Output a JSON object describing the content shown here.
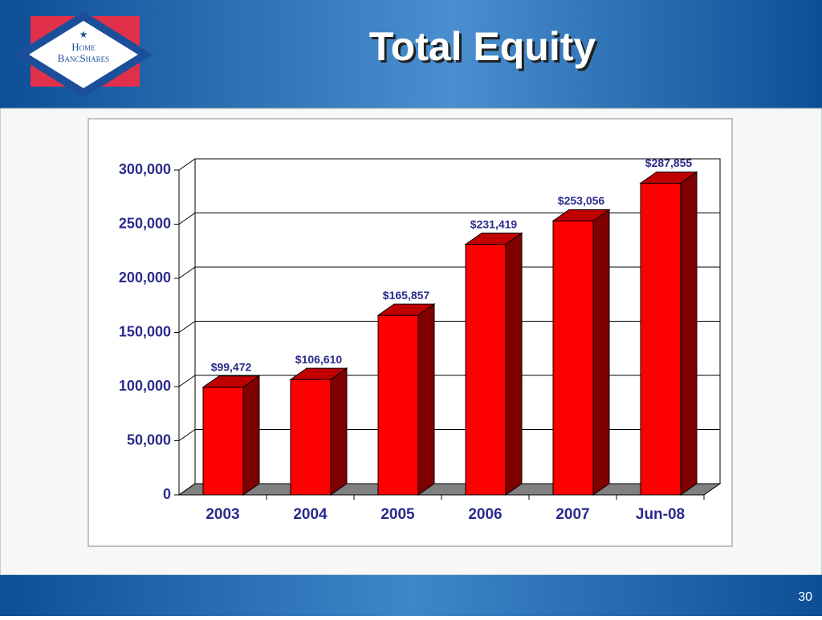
{
  "header": {
    "title": "Total Equity",
    "logo": [
      "Home",
      "BancShares"
    ]
  },
  "chart_data": {
    "type": "bar3d",
    "categories": [
      "2003",
      "2004",
      "2005",
      "2006",
      "2007",
      "Jun-08"
    ],
    "values": [
      99472,
      106610,
      165857,
      231419,
      253056,
      287855
    ],
    "value_labels": [
      "$99,472",
      "$106,610",
      "$165,857",
      "$231,419",
      "$253,056",
      "$287,855"
    ],
    "color": "#ff0000",
    "ylim": [
      0,
      300000
    ],
    "yticks": [
      0,
      {
        "value": 50000,
        "label": "50,000"
      },
      {
        "value": 100000,
        "label": "100,000"
      },
      {
        "value": 150000,
        "label": "150,000"
      },
      {
        "value": 200000,
        "label": "200,000"
      },
      {
        "value": 250000,
        "label": "250,000"
      },
      {
        "value": 300000,
        "label": "300,000"
      }
    ],
    "grid": true
  },
  "footer": {
    "page": "30"
  }
}
